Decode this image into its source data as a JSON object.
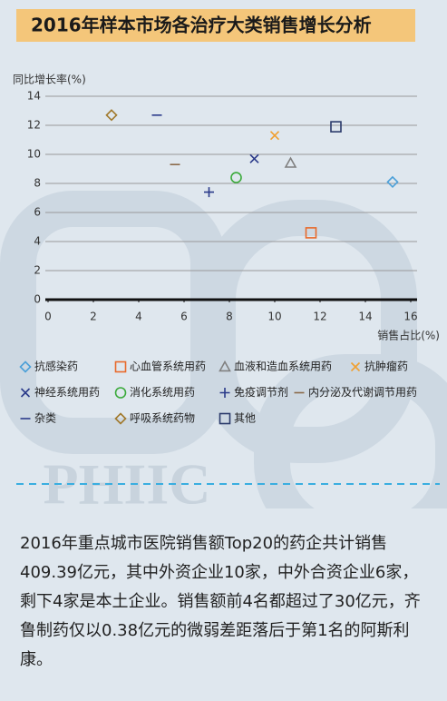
{
  "header": {
    "title": "2016年样本市场各治疗大类销售增长分析"
  },
  "chart_data": {
    "type": "scatter",
    "y_label": "同比增长率(%)",
    "x_label": "销售占比(%)",
    "xlim": [
      0,
      16
    ],
    "ylim": [
      0,
      14
    ],
    "xticks": [
      0,
      2,
      4,
      6,
      8,
      10,
      12,
      14,
      16
    ],
    "yticks": [
      0,
      2,
      4,
      6,
      8,
      10,
      12,
      14
    ],
    "grid": true,
    "series": [
      {
        "name": "抗感染药",
        "color": "#4a9fd8",
        "marker": "diamond",
        "x": [
          15.2
        ],
        "values": [
          8.1
        ]
      },
      {
        "name": "心血管系统用药",
        "color": "#e8692a",
        "marker": "square",
        "x": [
          11.6
        ],
        "values": [
          4.6
        ]
      },
      {
        "name": "血液和造血系统用药",
        "color": "#808080",
        "marker": "triangle",
        "x": [
          10.7
        ],
        "values": [
          9.4
        ]
      },
      {
        "name": "抗肿瘤药",
        "color": "#f0a030",
        "marker": "cross",
        "x": [
          10.0
        ],
        "values": [
          11.3
        ]
      },
      {
        "name": "神经系统用药",
        "color": "#2a3a8a",
        "marker": "cross",
        "x": [
          9.1
        ],
        "values": [
          9.7
        ]
      },
      {
        "name": "消化系统用药",
        "color": "#3aaa3a",
        "marker": "circle",
        "x": [
          8.3
        ],
        "values": [
          8.4
        ]
      },
      {
        "name": "免疫调节剂",
        "color": "#2a3a8a",
        "marker": "plus",
        "x": [
          7.1
        ],
        "values": [
          7.4
        ]
      },
      {
        "name": "内分泌及代谢调节用药",
        "color": "#8a6a4a",
        "marker": "dash",
        "x": [
          5.6
        ],
        "values": [
          9.3
        ]
      },
      {
        "name": "杂类",
        "color": "#2a3a8a",
        "marker": "dash",
        "x": [
          4.8
        ],
        "values": [
          12.7
        ]
      },
      {
        "name": "呼吸系统药物",
        "color": "#a0782a",
        "marker": "diamond",
        "x": [
          2.8
        ],
        "values": [
          12.7
        ]
      },
      {
        "name": "其他",
        "color": "#2a3a6a",
        "marker": "square",
        "x": [
          12.7
        ],
        "values": [
          11.9
        ]
      }
    ]
  },
  "watermark": "PHIIC",
  "body": {
    "text": "2016年重点城市医院销售额Top20的药企共计销售409.39亿元，其中外资企业10家，中外合资企业6家，剩下4家是本土企业。销售额前4名都超过了30亿元，齐鲁制药仅以0.38亿元的微弱差距落后于第1名的阿斯利康。"
  }
}
